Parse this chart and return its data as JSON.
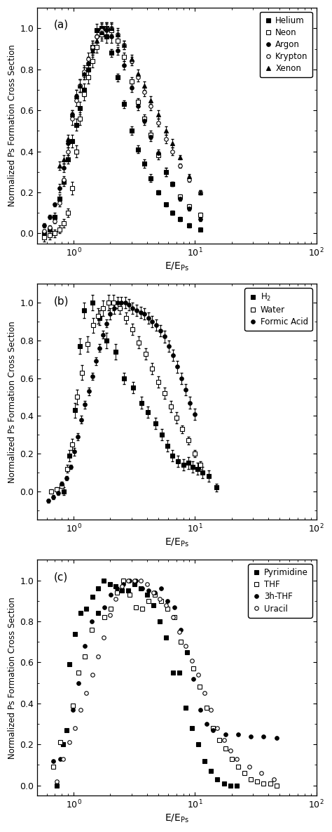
{
  "panel_a": {
    "label": "(a)",
    "xlim": [
      0.5,
      100
    ],
    "ylim": [
      -0.05,
      1.1
    ],
    "series": {
      "Helium": {
        "marker": "s",
        "filled": true,
        "markersize": 4,
        "x": [
          0.57,
          0.63,
          0.7,
          0.76,
          0.83,
          0.9,
          0.97,
          1.05,
          1.13,
          1.22,
          1.32,
          1.43,
          1.55,
          1.7,
          1.85,
          2.05,
          2.3,
          2.6,
          3.0,
          3.4,
          3.8,
          4.3,
          5.0,
          5.8,
          6.5,
          7.5,
          9.0,
          11.0
        ],
        "y": [
          0.0,
          0.02,
          0.08,
          0.17,
          0.25,
          0.36,
          0.45,
          0.53,
          0.61,
          0.7,
          0.8,
          0.91,
          0.99,
          1.0,
          0.96,
          0.88,
          0.76,
          0.63,
          0.5,
          0.41,
          0.34,
          0.27,
          0.2,
          0.14,
          0.1,
          0.07,
          0.04,
          0.02
        ],
        "yerr": [
          0.01,
          0.01,
          0.02,
          0.02,
          0.02,
          0.02,
          0.03,
          0.03,
          0.03,
          0.03,
          0.03,
          0.03,
          0.03,
          0.03,
          0.03,
          0.02,
          0.02,
          0.02,
          0.02,
          0.02,
          0.02,
          0.02,
          0.01,
          0.01,
          0.01,
          0.01,
          0.01,
          0.01
        ]
      },
      "Neon": {
        "marker": "s",
        "filled": false,
        "markersize": 4,
        "x": [
          0.57,
          0.63,
          0.7,
          0.76,
          0.83,
          0.9,
          0.97,
          1.05,
          1.13,
          1.22,
          1.32,
          1.43,
          1.55,
          1.7,
          1.85,
          2.05,
          2.3,
          2.6,
          3.0,
          3.4,
          3.8,
          4.3,
          5.0,
          5.8,
          6.5,
          7.5,
          9.0,
          11.0
        ],
        "y": [
          -0.02,
          -0.01,
          0.0,
          0.02,
          0.05,
          0.1,
          0.22,
          0.4,
          0.56,
          0.68,
          0.76,
          0.84,
          0.91,
          0.97,
          1.0,
          0.99,
          0.94,
          0.86,
          0.74,
          0.64,
          0.56,
          0.48,
          0.38,
          0.3,
          0.24,
          0.18,
          0.13,
          0.09
        ],
        "yerr": [
          0.02,
          0.02,
          0.02,
          0.02,
          0.02,
          0.02,
          0.03,
          0.03,
          0.03,
          0.03,
          0.03,
          0.03,
          0.03,
          0.03,
          0.03,
          0.03,
          0.02,
          0.02,
          0.02,
          0.02,
          0.02,
          0.02,
          0.02,
          0.02,
          0.01,
          0.01,
          0.01,
          0.01
        ]
      },
      "Argon": {
        "marker": "o",
        "filled": true,
        "markersize": 4,
        "x": [
          0.57,
          0.63,
          0.7,
          0.76,
          0.83,
          0.9,
          0.97,
          1.05,
          1.13,
          1.22,
          1.32,
          1.43,
          1.55,
          1.7,
          1.85,
          2.05,
          2.3,
          2.6,
          3.0,
          3.4,
          3.8,
          4.3,
          5.0,
          5.8,
          6.5,
          7.5,
          9.0,
          11.0
        ],
        "y": [
          0.04,
          0.08,
          0.14,
          0.22,
          0.32,
          0.44,
          0.58,
          0.67,
          0.72,
          0.78,
          0.83,
          0.9,
          0.96,
          1.0,
          0.99,
          0.96,
          0.89,
          0.82,
          0.71,
          0.62,
          0.55,
          0.47,
          0.39,
          0.3,
          0.24,
          0.17,
          0.12,
          0.07
        ],
        "yerr": [
          0.01,
          0.01,
          0.01,
          0.02,
          0.02,
          0.02,
          0.02,
          0.03,
          0.03,
          0.03,
          0.03,
          0.03,
          0.03,
          0.03,
          0.03,
          0.03,
          0.02,
          0.02,
          0.02,
          0.02,
          0.02,
          0.02,
          0.02,
          0.02,
          0.01,
          0.01,
          0.01,
          0.01
        ]
      },
      "Krypton": {
        "marker": "o",
        "filled": false,
        "markersize": 4,
        "x": [
          0.57,
          0.63,
          0.7,
          0.76,
          0.83,
          0.9,
          0.97,
          1.05,
          1.13,
          1.22,
          1.32,
          1.43,
          1.55,
          1.7,
          1.85,
          2.05,
          2.3,
          2.6,
          3.0,
          3.4,
          3.8,
          4.3,
          5.0,
          5.8,
          6.5,
          7.5,
          9.0,
          11.0
        ],
        "y": [
          0.01,
          0.03,
          0.06,
          0.15,
          0.26,
          0.4,
          0.56,
          0.65,
          0.72,
          0.79,
          0.85,
          0.91,
          0.96,
          0.99,
          1.0,
          1.0,
          0.97,
          0.92,
          0.84,
          0.76,
          0.69,
          0.62,
          0.54,
          0.46,
          0.4,
          0.33,
          0.26,
          0.2
        ],
        "yerr": [
          0.01,
          0.01,
          0.01,
          0.02,
          0.02,
          0.02,
          0.03,
          0.03,
          0.03,
          0.03,
          0.03,
          0.03,
          0.03,
          0.03,
          0.03,
          0.03,
          0.03,
          0.02,
          0.02,
          0.02,
          0.02,
          0.02,
          0.02,
          0.02,
          0.02,
          0.01,
          0.01,
          0.01
        ]
      },
      "Xenon": {
        "marker": "^",
        "filled": true,
        "markersize": 5,
        "x": [
          0.76,
          0.83,
          0.9,
          0.97,
          1.05,
          1.13,
          1.22,
          1.32,
          1.43,
          1.55,
          1.7,
          1.85,
          2.05,
          2.3,
          2.6,
          3.0,
          3.4,
          3.8,
          4.3,
          5.0,
          5.8,
          6.5,
          7.5,
          9.0,
          11.0
        ],
        "y": [
          0.33,
          0.36,
          0.46,
          0.58,
          0.67,
          0.72,
          0.78,
          0.83,
          0.89,
          0.94,
          0.98,
          1.0,
          1.0,
          0.97,
          0.92,
          0.85,
          0.78,
          0.72,
          0.65,
          0.58,
          0.5,
          0.44,
          0.37,
          0.28,
          0.2
        ],
        "yerr": [
          0.02,
          0.02,
          0.02,
          0.02,
          0.03,
          0.03,
          0.03,
          0.03,
          0.03,
          0.03,
          0.03,
          0.03,
          0.03,
          0.02,
          0.02,
          0.02,
          0.02,
          0.02,
          0.02,
          0.02,
          0.02,
          0.02,
          0.01,
          0.01,
          0.01
        ]
      }
    }
  },
  "panel_b": {
    "label": "(b)",
    "xlim": [
      0.5,
      100
    ],
    "ylim": [
      -0.15,
      1.1
    ],
    "series": {
      "H_2": {
        "marker": "s",
        "filled": true,
        "markersize": 4,
        "x": [
          0.83,
          0.92,
          1.02,
          1.12,
          1.22,
          1.42,
          1.62,
          1.85,
          2.2,
          2.6,
          3.1,
          3.6,
          4.1,
          4.7,
          5.3,
          5.9,
          6.5,
          7.2,
          8.0,
          8.8,
          9.6,
          10.5,
          11.5,
          13.0,
          15.0
        ],
        "y": [
          0.0,
          0.19,
          0.43,
          0.77,
          0.96,
          1.0,
          0.92,
          0.8,
          0.74,
          0.6,
          0.55,
          0.47,
          0.42,
          0.36,
          0.3,
          0.24,
          0.19,
          0.16,
          0.14,
          0.15,
          0.13,
          0.12,
          0.1,
          0.08,
          0.02
        ],
        "yerr": [
          0.02,
          0.03,
          0.04,
          0.04,
          0.04,
          0.04,
          0.04,
          0.04,
          0.04,
          0.03,
          0.03,
          0.03,
          0.03,
          0.03,
          0.03,
          0.03,
          0.03,
          0.03,
          0.03,
          0.03,
          0.03,
          0.03,
          0.03,
          0.03,
          0.02
        ]
      },
      "Water": {
        "marker": "s",
        "filled": false,
        "markersize": 4,
        "x": [
          0.65,
          0.72,
          0.8,
          0.88,
          0.97,
          1.07,
          1.17,
          1.3,
          1.44,
          1.58,
          1.74,
          1.93,
          2.14,
          2.4,
          2.7,
          3.05,
          3.45,
          3.9,
          4.4,
          5.0,
          5.6,
          6.3,
          7.0,
          7.8,
          8.8,
          10.0,
          11.0
        ],
        "y": [
          0.0,
          0.01,
          0.03,
          0.12,
          0.25,
          0.5,
          0.63,
          0.78,
          0.88,
          0.93,
          0.97,
          1.0,
          1.0,
          0.97,
          0.92,
          0.86,
          0.79,
          0.73,
          0.65,
          0.58,
          0.52,
          0.45,
          0.39,
          0.33,
          0.27,
          0.2,
          0.14
        ],
        "yerr": [
          0.01,
          0.01,
          0.01,
          0.02,
          0.03,
          0.04,
          0.04,
          0.04,
          0.04,
          0.04,
          0.04,
          0.04,
          0.04,
          0.03,
          0.03,
          0.03,
          0.03,
          0.03,
          0.03,
          0.03,
          0.03,
          0.03,
          0.03,
          0.02,
          0.02,
          0.02,
          0.02
        ]
      },
      "Formic Acid": {
        "marker": "o",
        "filled": true,
        "markersize": 4,
        "x": [
          0.62,
          0.68,
          0.74,
          0.8,
          0.87,
          0.94,
          1.01,
          1.08,
          1.16,
          1.24,
          1.33,
          1.42,
          1.52,
          1.63,
          1.74,
          1.87,
          2.0,
          2.15,
          2.3,
          2.47,
          2.65,
          2.85,
          3.06,
          3.3,
          3.55,
          3.83,
          4.12,
          4.44,
          4.8,
          5.2,
          5.62,
          6.1,
          6.6,
          7.16,
          7.75,
          8.4,
          9.12,
          9.9
        ],
        "y": [
          -0.05,
          -0.03,
          -0.01,
          0.04,
          0.07,
          0.13,
          0.21,
          0.29,
          0.38,
          0.46,
          0.53,
          0.61,
          0.69,
          0.76,
          0.83,
          0.89,
          0.94,
          0.97,
          1.0,
          1.0,
          1.0,
          0.99,
          0.97,
          0.96,
          0.95,
          0.94,
          0.92,
          0.9,
          0.88,
          0.85,
          0.82,
          0.77,
          0.72,
          0.66,
          0.6,
          0.54,
          0.47,
          0.41
        ],
        "yerr": [
          0.01,
          0.01,
          0.01,
          0.01,
          0.01,
          0.01,
          0.02,
          0.02,
          0.02,
          0.02,
          0.02,
          0.02,
          0.02,
          0.02,
          0.02,
          0.02,
          0.03,
          0.03,
          0.03,
          0.03,
          0.03,
          0.03,
          0.03,
          0.03,
          0.03,
          0.03,
          0.03,
          0.03,
          0.03,
          0.03,
          0.03,
          0.03,
          0.03,
          0.03,
          0.03,
          0.03,
          0.03,
          0.03
        ]
      }
    }
  },
  "panel_c": {
    "label": "(c)",
    "xlim": [
      0.5,
      100
    ],
    "ylim": [
      -0.05,
      1.1
    ],
    "series": {
      "Pyrimidine": {
        "marker": "s",
        "filled": true,
        "markersize": 4,
        "x": [
          0.72,
          0.82,
          0.92,
          1.02,
          1.14,
          1.27,
          1.42,
          1.58,
          1.77,
          1.98,
          2.22,
          2.5,
          2.82,
          3.18,
          3.58,
          4.04,
          4.56,
          5.14,
          5.8,
          6.55,
          7.4,
          8.35,
          9.42,
          10.6,
          12.0,
          13.5,
          15.3,
          17.3,
          19.5,
          22.0
        ],
        "y": [
          0.0,
          0.2,
          0.59,
          0.74,
          0.84,
          0.86,
          0.92,
          0.96,
          1.0,
          0.98,
          0.97,
          0.95,
          0.95,
          0.98,
          0.96,
          0.93,
          0.88,
          0.8,
          0.72,
          0.55,
          0.55,
          0.38,
          0.28,
          0.2,
          0.12,
          0.07,
          0.03,
          0.01,
          0.0,
          0.0
        ]
      },
      "THF": {
        "marker": "s",
        "filled": false,
        "markersize": 4,
        "x": [
          0.68,
          0.77,
          0.87,
          0.98,
          1.1,
          1.24,
          1.4,
          1.58,
          1.78,
          2.01,
          2.27,
          2.56,
          2.89,
          3.27,
          3.68,
          4.15,
          4.68,
          5.28,
          5.96,
          6.73,
          7.6,
          8.58,
          9.69,
          10.9,
          12.4,
          14.0,
          15.8,
          17.8,
          20.1,
          22.7,
          25.6,
          28.9,
          32.6,
          36.8,
          41.6,
          46.9
        ],
        "y": [
          0.09,
          0.21,
          0.27,
          0.39,
          0.55,
          0.63,
          0.76,
          0.84,
          0.82,
          0.86,
          0.94,
          1.0,
          0.93,
          0.87,
          0.86,
          0.9,
          0.93,
          0.9,
          0.86,
          0.82,
          0.7,
          0.65,
          0.57,
          0.48,
          0.38,
          0.28,
          0.22,
          0.18,
          0.13,
          0.09,
          0.06,
          0.03,
          0.02,
          0.01,
          0.01,
          0.0
        ]
      },
      "3h-THF": {
        "marker": "o",
        "filled": true,
        "markersize": 4,
        "x": [
          0.68,
          0.77,
          0.87,
          0.98,
          1.1,
          1.24,
          1.4,
          1.58,
          1.78,
          2.01,
          2.27,
          2.56,
          2.89,
          3.27,
          3.68,
          4.15,
          4.68,
          5.28,
          5.96,
          6.73,
          7.6,
          8.58,
          9.69,
          11.0,
          12.4,
          14.0,
          17.8,
          22.7,
          28.9,
          36.8,
          46.9
        ],
        "y": [
          0.12,
          0.13,
          0.27,
          0.37,
          0.5,
          0.68,
          0.8,
          0.84,
          0.87,
          0.93,
          0.96,
          0.98,
          1.0,
          1.0,
          0.96,
          0.95,
          0.94,
          0.96,
          0.9,
          0.87,
          0.76,
          0.65,
          0.52,
          0.37,
          0.3,
          0.27,
          0.25,
          0.25,
          0.24,
          0.24,
          0.23
        ]
      },
      "Uracil": {
        "marker": "o",
        "filled": false,
        "markersize": 4,
        "x": [
          0.72,
          0.82,
          0.92,
          1.02,
          1.14,
          1.27,
          1.42,
          1.58,
          1.77,
          1.98,
          2.22,
          2.5,
          2.82,
          3.18,
          3.58,
          4.04,
          4.56,
          5.14,
          5.8,
          6.55,
          7.4,
          8.35,
          9.42,
          10.6,
          12.0,
          13.5,
          15.3,
          17.3,
          19.5,
          22.0,
          27.9,
          35.4,
          44.9
        ],
        "y": [
          0.02,
          0.13,
          0.21,
          0.28,
          0.37,
          0.45,
          0.54,
          0.63,
          0.72,
          0.83,
          0.91,
          0.97,
          1.0,
          1.0,
          1.0,
          0.98,
          0.94,
          0.91,
          0.88,
          0.82,
          0.75,
          0.68,
          0.61,
          0.54,
          0.45,
          0.37,
          0.28,
          0.22,
          0.17,
          0.13,
          0.09,
          0.06,
          0.03
        ]
      }
    }
  },
  "ylabel": "Normalized Ps Formation Cross Section",
  "xlabel_latex": "E/E$_\\mathrm{Ps}$",
  "background_color": "#ffffff"
}
